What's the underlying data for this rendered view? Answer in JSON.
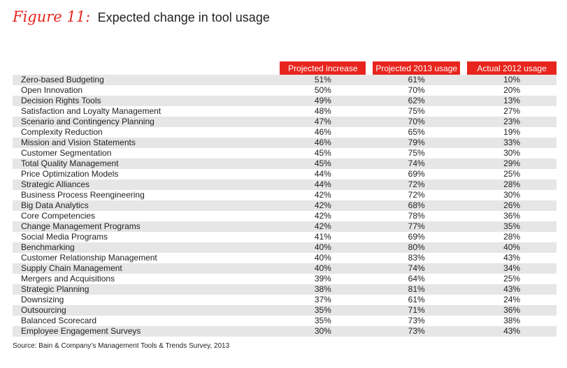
{
  "chart_data": {
    "type": "table",
    "title_prefix": "Figure 11:",
    "title": "Expected change in tool usage",
    "columns": [
      "Projected increase",
      "Projected 2013 usage",
      "Actual 2012 usage"
    ],
    "rows": [
      {
        "tool": "Zero-based Budgeting",
        "values": [
          "51%",
          "61%",
          "10%"
        ]
      },
      {
        "tool": "Open Innovation",
        "values": [
          "50%",
          "70%",
          "20%"
        ]
      },
      {
        "tool": "Decision Rights Tools",
        "values": [
          "49%",
          "62%",
          "13%"
        ]
      },
      {
        "tool": "Satisfaction and Loyalty Management",
        "values": [
          "48%",
          "75%",
          "27%"
        ]
      },
      {
        "tool": "Scenario and Contingency Planning",
        "values": [
          "47%",
          "70%",
          "23%"
        ]
      },
      {
        "tool": "Complexity Reduction",
        "values": [
          "46%",
          "65%",
          "19%"
        ]
      },
      {
        "tool": "Mission and Vision Statements",
        "values": [
          "46%",
          "79%",
          "33%"
        ]
      },
      {
        "tool": "Customer Segmentation",
        "values": [
          "45%",
          "75%",
          "30%"
        ]
      },
      {
        "tool": "Total Quality Management",
        "values": [
          "45%",
          "74%",
          "29%"
        ]
      },
      {
        "tool": "Price Optimization Models",
        "values": [
          "44%",
          "69%",
          "25%"
        ]
      },
      {
        "tool": "Strategic Alliances",
        "values": [
          "44%",
          "72%",
          "28%"
        ]
      },
      {
        "tool": "Business Process Reengineering",
        "values": [
          "42%",
          "72%",
          "30%"
        ]
      },
      {
        "tool": "Big Data Analytics",
        "values": [
          "42%",
          "68%",
          "26%"
        ]
      },
      {
        "tool": "Core Competencies",
        "values": [
          "42%",
          "78%",
          "36%"
        ]
      },
      {
        "tool": "Change Management Programs",
        "values": [
          "42%",
          "77%",
          "35%"
        ]
      },
      {
        "tool": "Social Media Programs",
        "values": [
          "41%",
          "69%",
          "28%"
        ]
      },
      {
        "tool": "Benchmarking",
        "values": [
          "40%",
          "80%",
          "40%"
        ]
      },
      {
        "tool": "Customer Relationship Management",
        "values": [
          "40%",
          "83%",
          "43%"
        ]
      },
      {
        "tool": "Supply Chain Management",
        "values": [
          "40%",
          "74%",
          "34%"
        ]
      },
      {
        "tool": "Mergers and Acquisitions",
        "values": [
          "39%",
          "64%",
          "25%"
        ]
      },
      {
        "tool": "Strategic Planning",
        "values": [
          "38%",
          "81%",
          "43%"
        ]
      },
      {
        "tool": "Downsizing",
        "values": [
          "37%",
          "61%",
          "24%"
        ]
      },
      {
        "tool": "Outsourcing",
        "values": [
          "35%",
          "71%",
          "36%"
        ]
      },
      {
        "tool": "Balanced Scorecard",
        "values": [
          "35%",
          "73%",
          "38%"
        ]
      },
      {
        "tool": "Employee Engagement Surveys",
        "values": [
          "30%",
          "73%",
          "43%"
        ]
      }
    ],
    "source": "Source: Bain & Company’s Management Tools & Trends Survey, 2013"
  },
  "colors": {
    "accent": "#e8251d",
    "row_band": "#e6e6e6",
    "text": "#222222"
  }
}
